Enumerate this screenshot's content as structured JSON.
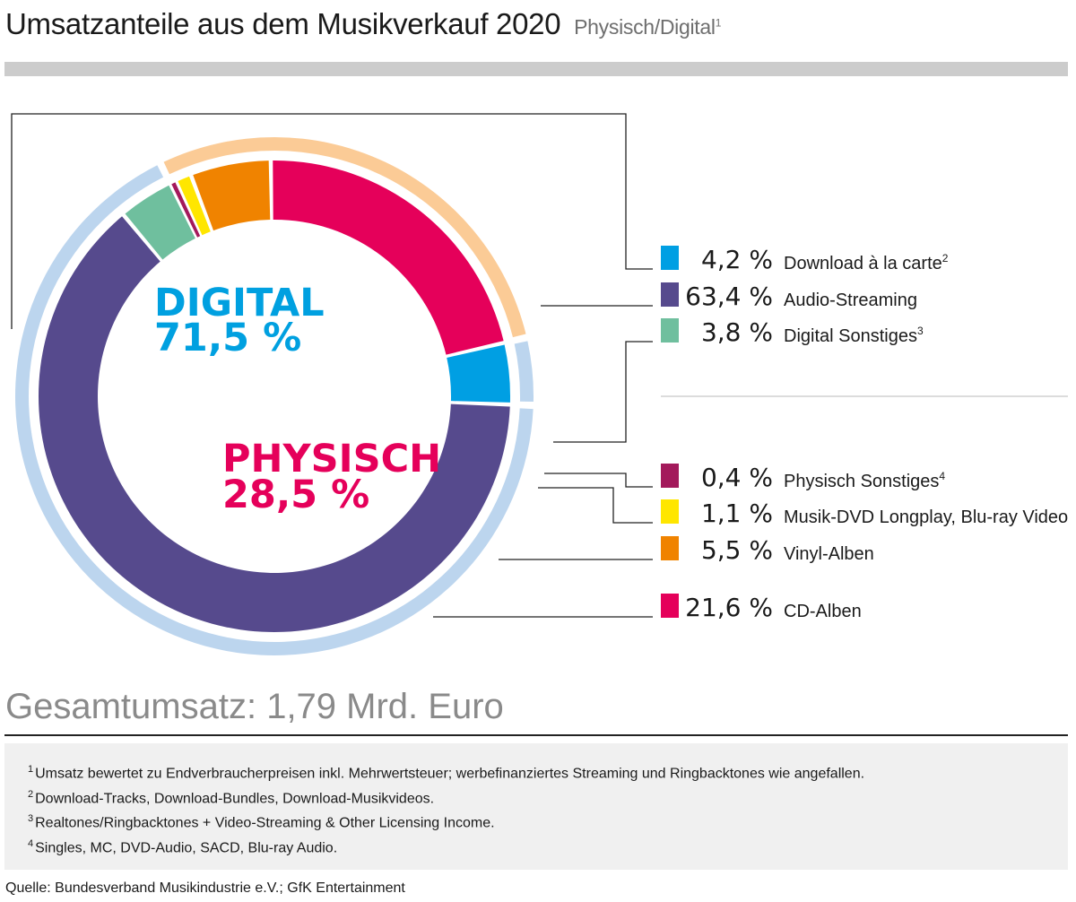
{
  "header": {
    "title": "Umsatzanteile aus dem Musikverkauf 2020",
    "subtitle": "Physisch/Digital",
    "subtitle_sup": "1"
  },
  "chart_data": {
    "type": "pie",
    "variant": "donut",
    "groups": [
      {
        "name": "DIGITAL",
        "value_label": "71,5 %",
        "value": 71.5,
        "color": "#00a0e0",
        "ring_color": "#bcd5ee"
      },
      {
        "name": "PHYSISCH",
        "value_label": "28,5 %",
        "value": 28.5,
        "color": "#e5005a",
        "ring_color": "#fbcb96"
      }
    ],
    "slices": [
      {
        "name": "Audio-Streaming",
        "sup": "",
        "value": 63.4,
        "value_label": "63,4 %",
        "group": "DIGITAL",
        "color": "#564a8d"
      },
      {
        "name": "Digital Sonstiges",
        "sup": "3",
        "value": 3.8,
        "value_label": "3,8 %",
        "group": "DIGITAL",
        "color": "#6fbf9e"
      },
      {
        "name": "Physisch Sonstiges",
        "sup": "4",
        "value": 0.4,
        "value_label": "0,4 %",
        "group": "PHYSISCH",
        "color": "#a3195b"
      },
      {
        "name": "Musik-DVD Longplay, Blu-ray Video",
        "sup": "",
        "value": 1.1,
        "value_label": "1,1 %",
        "group": "PHYSISCH",
        "color": "#ffe600"
      },
      {
        "name": "Vinyl-Alben",
        "sup": "",
        "value": 5.5,
        "value_label": "5,5 %",
        "group": "PHYSISCH",
        "color": "#f08300"
      },
      {
        "name": "CD-Alben",
        "sup": "",
        "value": 21.6,
        "value_label": "21,6 %",
        "group": "PHYSISCH",
        "color": "#e5005a"
      },
      {
        "name": "Download à la carte",
        "sup": "2",
        "value": 4.2,
        "value_label": "4,2 %",
        "group": "DIGITAL",
        "color": "#009fe3"
      }
    ],
    "legend_order": [
      "Download à la carte",
      "Audio-Streaming",
      "Digital Sonstiges",
      "Physisch Sonstiges",
      "Musik-DVD Longplay, Blu-ray Video",
      "Vinyl-Alben",
      "CD-Alben"
    ],
    "legend_position": "right"
  },
  "total": "Gesamtumsatz: 1,79 Mrd. Euro",
  "footnotes": [
    {
      "sup": "1",
      "text": "Umsatz bewertet zu Endverbraucherpreisen inkl. Mehrwertsteuer; werbefinanziertes Streaming und Ringbacktones wie angefallen."
    },
    {
      "sup": "2",
      "text": "Download-Tracks, Download-Bundles, Download-Musikvideos."
    },
    {
      "sup": "3",
      "text": "Realtones/Ringbacktones + Video-Streaming & Other Licensing Income."
    },
    {
      "sup": "4",
      "text": "Singles, MC, DVD-Audio, SACD, Blu-ray Audio."
    }
  ],
  "source": "Quelle: Bundesverband Musikindustrie e.V.; GfK Entertainment"
}
